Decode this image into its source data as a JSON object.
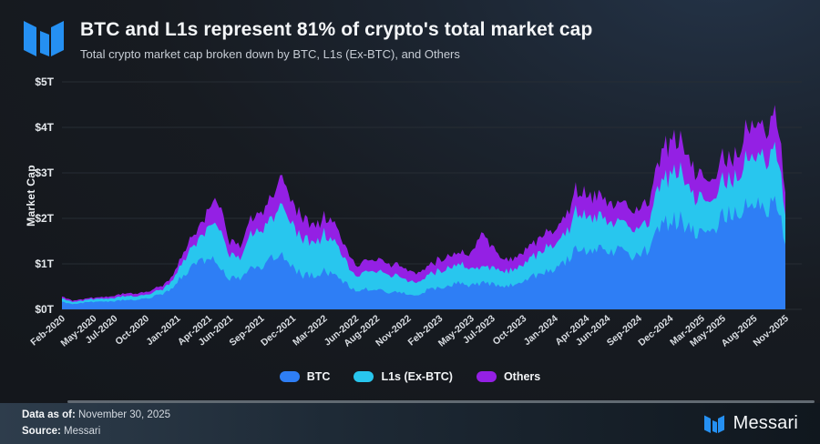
{
  "header": {
    "title": "BTC and L1s represent 81% of crypto's total market cap",
    "subtitle": "Total crypto market cap broken down by BTC, L1s (Ex-BTC), and Others"
  },
  "colors": {
    "btc": "#2e7ef5",
    "l1s": "#28c6ee",
    "others": "#9420e4",
    "grid": "#272d34",
    "logo_blue": "#2590f2"
  },
  "chart_data": {
    "type": "area",
    "stacked": true,
    "title": "BTC and L1s represent 81% of crypto's total market cap",
    "xlabel": "",
    "ylabel": "Market Cap",
    "unit": "trillions USD",
    "ylim": [
      0,
      5
    ],
    "y_ticks": [
      "$0T",
      "$1T",
      "$2T",
      "$3T",
      "$4T",
      "$5T"
    ],
    "grid": true,
    "legend_position": "bottom",
    "months": [
      "Feb-2020",
      "Mar-2020",
      "Apr-2020",
      "May-2020",
      "Jun-2020",
      "Jul-2020",
      "Aug-2020",
      "Sep-2020",
      "Oct-2020",
      "Nov-2020",
      "Dec-2020",
      "Jan-2021",
      "Feb-2021",
      "Mar-2021",
      "Apr-2021",
      "May-2021",
      "Jun-2021",
      "Jul-2021",
      "Aug-2021",
      "Sep-2021",
      "Oct-2021",
      "Nov-2021",
      "Dec-2021",
      "Jan-2022",
      "Feb-2022",
      "Mar-2022",
      "Apr-2022",
      "May-2022",
      "Jun-2022",
      "Jul-2022",
      "Aug-2022",
      "Sep-2022",
      "Oct-2022",
      "Nov-2022",
      "Dec-2022",
      "Jan-2023",
      "Feb-2023",
      "Mar-2023",
      "Apr-2023",
      "May-2023",
      "Jun-2023",
      "Jul-2023",
      "Aug-2023",
      "Sep-2023",
      "Oct-2023",
      "Nov-2023",
      "Dec-2023",
      "Jan-2024",
      "Feb-2024",
      "Mar-2024",
      "Apr-2024",
      "May-2024",
      "Jun-2024",
      "Jul-2024",
      "Aug-2024",
      "Sep-2024",
      "Oct-2024",
      "Nov-2024",
      "Dec-2024",
      "Jan-2025",
      "Feb-2025",
      "Mar-2025",
      "Apr-2025",
      "May-2025",
      "Jun-2025",
      "Jul-2025",
      "Aug-2025",
      "Sep-2025",
      "Oct-2025",
      "Nov-2025"
    ],
    "x_tick_labels": [
      {
        "label": "Feb-2020",
        "index": 0
      },
      {
        "label": "May-2020",
        "index": 3
      },
      {
        "label": "Jul-2020",
        "index": 5
      },
      {
        "label": "Oct-2020",
        "index": 8
      },
      {
        "label": "Jan-2021",
        "index": 11
      },
      {
        "label": "Apr-2021",
        "index": 14
      },
      {
        "label": "Jun-2021",
        "index": 16
      },
      {
        "label": "Sep-2021",
        "index": 19
      },
      {
        "label": "Dec-2021",
        "index": 22
      },
      {
        "label": "Mar-2022",
        "index": 25
      },
      {
        "label": "Jun-2022",
        "index": 28
      },
      {
        "label": "Aug-2022",
        "index": 30
      },
      {
        "label": "Nov-2022",
        "index": 33
      },
      {
        "label": "Feb-2023",
        "index": 36
      },
      {
        "label": "May-2023",
        "index": 39
      },
      {
        "label": "Jul-2023",
        "index": 41
      },
      {
        "label": "Oct-2023",
        "index": 44
      },
      {
        "label": "Jan-2024",
        "index": 47
      },
      {
        "label": "Apr-2024",
        "index": 50
      },
      {
        "label": "Jun-2024",
        "index": 52
      },
      {
        "label": "Sep-2024",
        "index": 55
      },
      {
        "label": "Dec-2024",
        "index": 58
      },
      {
        "label": "Mar-2025",
        "index": 61
      },
      {
        "label": "May-2025",
        "index": 63
      },
      {
        "label": "Aug-2025",
        "index": 66
      },
      {
        "label": "Nov-2025",
        "index": 69
      }
    ],
    "series": [
      {
        "name": "BTC",
        "color": "#2e7ef5",
        "values": [
          0.17,
          0.12,
          0.14,
          0.17,
          0.17,
          0.17,
          0.21,
          0.19,
          0.24,
          0.3,
          0.38,
          0.6,
          0.85,
          1.05,
          1.1,
          1.0,
          0.68,
          0.65,
          0.9,
          0.85,
          1.15,
          1.18,
          0.92,
          0.75,
          0.76,
          0.85,
          0.76,
          0.58,
          0.4,
          0.44,
          0.46,
          0.38,
          0.39,
          0.32,
          0.32,
          0.44,
          0.46,
          0.55,
          0.57,
          0.53,
          0.57,
          0.58,
          0.52,
          0.52,
          0.64,
          0.72,
          0.82,
          0.85,
          1.0,
          1.35,
          1.25,
          1.3,
          1.32,
          1.28,
          1.18,
          1.22,
          1.35,
          1.8,
          1.95,
          1.95,
          1.75,
          1.65,
          1.65,
          2.05,
          2.05,
          2.25,
          2.28,
          2.2,
          2.3,
          1.6
        ]
      },
      {
        "name": "L1s (Ex-BTC)",
        "color": "#28c6ee",
        "values": [
          0.07,
          0.05,
          0.05,
          0.06,
          0.06,
          0.07,
          0.09,
          0.08,
          0.08,
          0.1,
          0.12,
          0.22,
          0.4,
          0.45,
          0.68,
          0.88,
          0.52,
          0.48,
          0.72,
          0.8,
          0.92,
          1.05,
          0.98,
          0.8,
          0.75,
          0.8,
          0.74,
          0.5,
          0.34,
          0.4,
          0.42,
          0.38,
          0.37,
          0.3,
          0.28,
          0.34,
          0.38,
          0.4,
          0.42,
          0.38,
          0.35,
          0.36,
          0.34,
          0.33,
          0.36,
          0.44,
          0.5,
          0.52,
          0.62,
          0.8,
          0.73,
          0.73,
          0.7,
          0.65,
          0.6,
          0.62,
          0.63,
          0.85,
          1.1,
          1.0,
          0.85,
          0.72,
          0.65,
          0.78,
          0.72,
          0.92,
          1.12,
          1.1,
          1.25,
          0.6
        ]
      },
      {
        "name": "Others",
        "color": "#9420e4",
        "values": [
          0.04,
          0.03,
          0.03,
          0.03,
          0.04,
          0.05,
          0.06,
          0.06,
          0.06,
          0.07,
          0.08,
          0.13,
          0.22,
          0.25,
          0.4,
          0.55,
          0.3,
          0.28,
          0.35,
          0.4,
          0.45,
          0.65,
          0.5,
          0.45,
          0.4,
          0.4,
          0.4,
          0.3,
          0.24,
          0.25,
          0.27,
          0.24,
          0.24,
          0.23,
          0.2,
          0.22,
          0.25,
          0.25,
          0.26,
          0.33,
          0.75,
          0.45,
          0.28,
          0.25,
          0.27,
          0.3,
          0.33,
          0.33,
          0.38,
          0.48,
          0.47,
          0.47,
          0.43,
          0.42,
          0.42,
          0.41,
          0.42,
          0.6,
          0.75,
          0.65,
          0.6,
          0.48,
          0.45,
          0.5,
          0.48,
          0.6,
          0.7,
          0.7,
          0.8,
          0.52
        ]
      }
    ]
  },
  "legend": {
    "items": [
      {
        "label": "BTC",
        "color": "#2e7ef5"
      },
      {
        "label": "L1s (Ex-BTC)",
        "color": "#28c6ee"
      },
      {
        "label": "Others",
        "color": "#9420e4"
      }
    ]
  },
  "footer": {
    "data_as_of_label": "Data as of:",
    "data_as_of_value": "November 30, 2025",
    "source_label": "Source:",
    "source_value": "Messari",
    "brand": "Messari"
  }
}
